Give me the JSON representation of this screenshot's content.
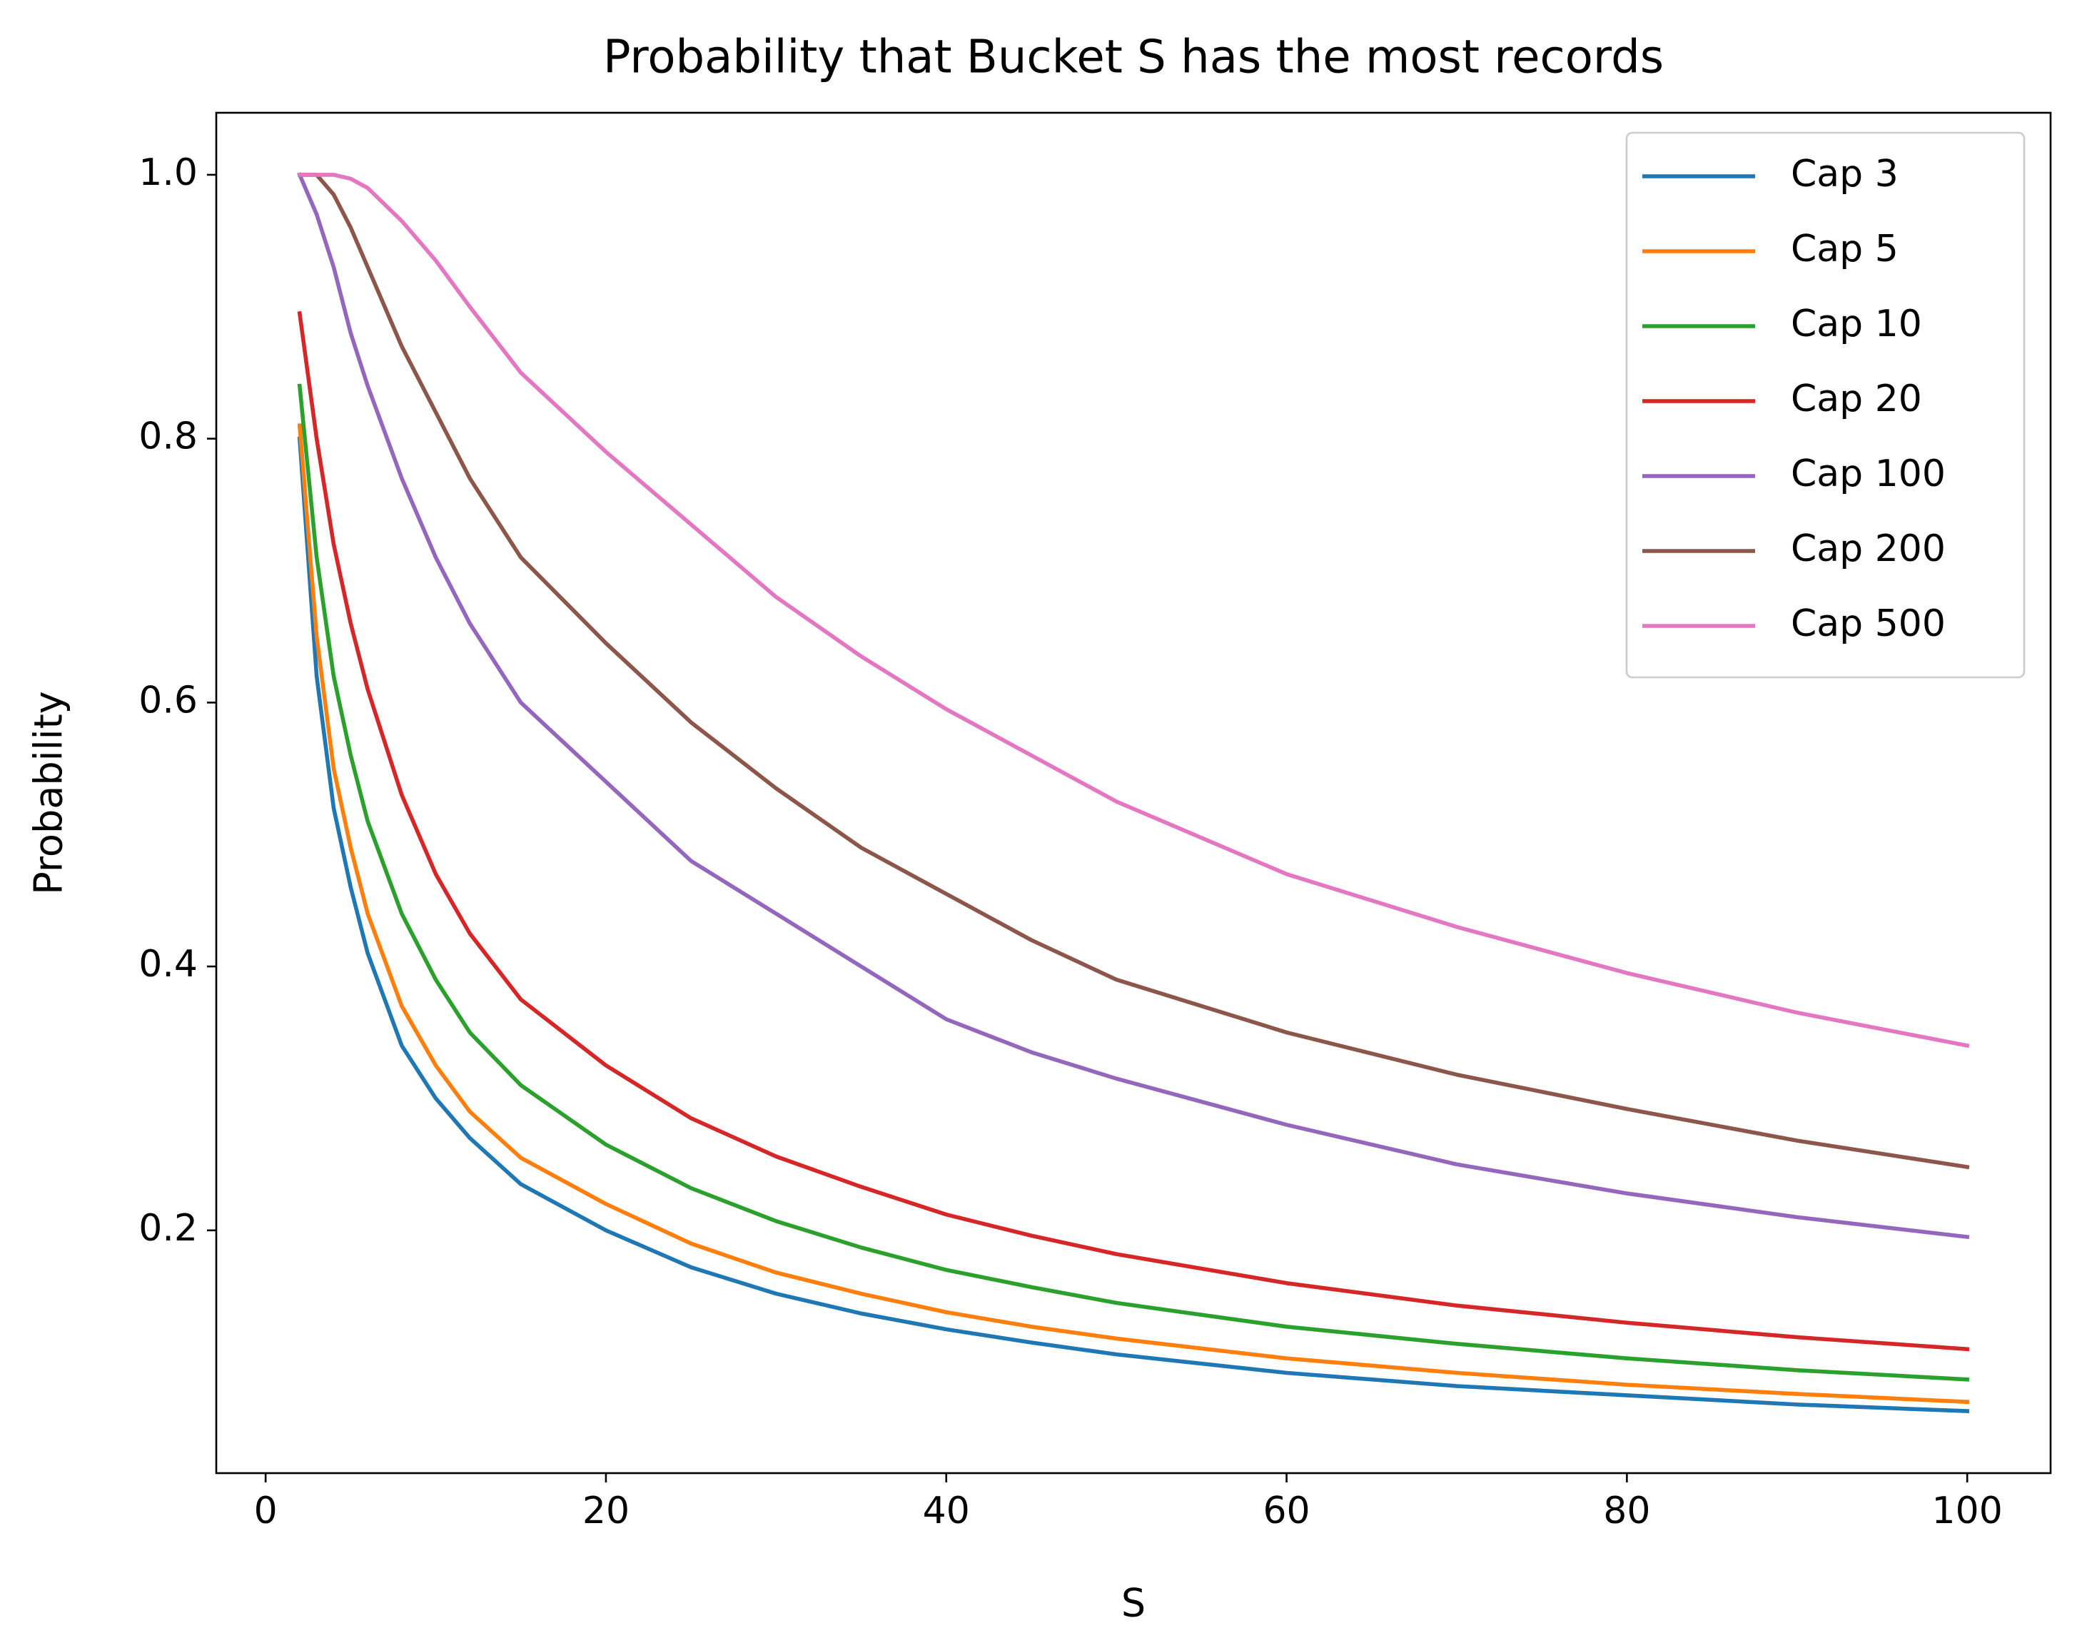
{
  "chart_data": {
    "type": "line",
    "title": "Probability that Bucket S has the most records",
    "x_label": "S",
    "y_label": "Probability",
    "x": [
      2,
      3,
      4,
      5,
      6,
      8,
      10,
      12,
      15,
      20,
      25,
      30,
      35,
      40,
      45,
      50,
      60,
      70,
      80,
      90,
      100
    ],
    "series": [
      {
        "name": "Cap 3",
        "color": "#1f77b4",
        "values": [
          0.8,
          0.62,
          0.52,
          0.46,
          0.41,
          0.34,
          0.3,
          0.27,
          0.235,
          0.2,
          0.172,
          0.152,
          0.137,
          0.125,
          0.115,
          0.106,
          0.092,
          0.082,
          0.075,
          0.068,
          0.063
        ]
      },
      {
        "name": "Cap 5",
        "color": "#ff7f0e",
        "values": [
          0.81,
          0.65,
          0.55,
          0.49,
          0.44,
          0.37,
          0.325,
          0.29,
          0.255,
          0.22,
          0.19,
          0.168,
          0.152,
          0.138,
          0.127,
          0.118,
          0.103,
          0.092,
          0.083,
          0.076,
          0.07
        ]
      },
      {
        "name": "Cap 10",
        "color": "#2ca02c",
        "values": [
          0.84,
          0.71,
          0.62,
          0.56,
          0.51,
          0.44,
          0.39,
          0.35,
          0.31,
          0.265,
          0.232,
          0.207,
          0.187,
          0.17,
          0.157,
          0.145,
          0.127,
          0.114,
          0.103,
          0.094,
          0.087
        ]
      },
      {
        "name": "Cap 20",
        "color": "#d62728",
        "values": [
          0.895,
          0.8,
          0.72,
          0.66,
          0.61,
          0.53,
          0.47,
          0.425,
          0.375,
          0.325,
          0.285,
          0.256,
          0.233,
          0.212,
          0.196,
          0.182,
          0.16,
          0.143,
          0.13,
          0.119,
          0.11
        ]
      },
      {
        "name": "Cap 100",
        "color": "#9467bd",
        "values": [
          1.0,
          0.97,
          0.93,
          0.88,
          0.84,
          0.77,
          0.71,
          0.66,
          0.6,
          0.54,
          0.48,
          0.44,
          0.4,
          0.36,
          0.335,
          0.315,
          0.28,
          0.25,
          0.228,
          0.21,
          0.195
        ]
      },
      {
        "name": "Cap 200",
        "color": "#8c564b",
        "values": [
          1.0,
          1.0,
          0.985,
          0.96,
          0.93,
          0.87,
          0.82,
          0.77,
          0.71,
          0.645,
          0.585,
          0.535,
          0.49,
          0.455,
          0.42,
          0.39,
          0.35,
          0.318,
          0.292,
          0.268,
          0.248
        ]
      },
      {
        "name": "Cap 500",
        "color": "#e377c2",
        "values": [
          1.0,
          1.0,
          1.0,
          0.997,
          0.99,
          0.965,
          0.935,
          0.9,
          0.85,
          0.79,
          0.735,
          0.68,
          0.635,
          0.595,
          0.56,
          0.525,
          0.47,
          0.43,
          0.395,
          0.365,
          0.34
        ]
      }
    ],
    "xlim": [
      -2.9,
      104.9
    ],
    "ylim": [
      0.016,
      1.047
    ],
    "xticks": [
      0,
      20,
      40,
      60,
      80,
      100
    ],
    "yticks": [
      {
        "value": 0.2,
        "label": "0.2"
      },
      {
        "value": 0.4,
        "label": "0.4"
      },
      {
        "value": 0.6,
        "label": "0.6"
      },
      {
        "value": 0.8,
        "label": "0.8"
      },
      {
        "value": 1.0,
        "label": "1.0"
      }
    ],
    "legend": "upper right",
    "grid": false
  }
}
